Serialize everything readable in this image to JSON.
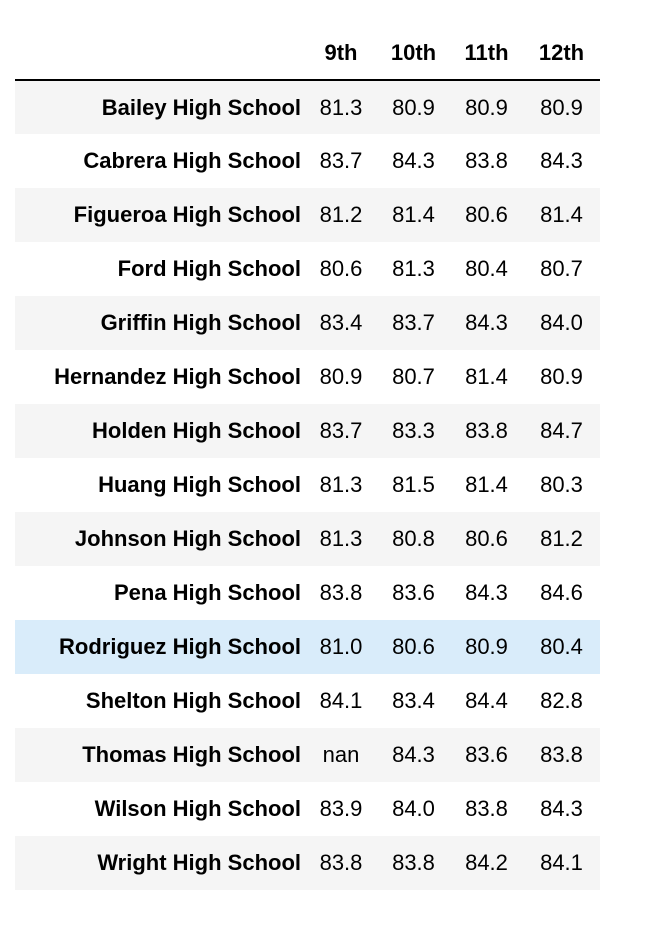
{
  "table": {
    "columns": [
      "9th",
      "10th",
      "11th",
      "12th"
    ],
    "rows": [
      {
        "school": "Bailey High School",
        "values": [
          "81.3",
          "80.9",
          "80.9",
          "80.9"
        ]
      },
      {
        "school": "Cabrera High School",
        "values": [
          "83.7",
          "84.3",
          "83.8",
          "84.3"
        ]
      },
      {
        "school": "Figueroa High School",
        "values": [
          "81.2",
          "81.4",
          "80.6",
          "81.4"
        ]
      },
      {
        "school": "Ford High School",
        "values": [
          "80.6",
          "81.3",
          "80.4",
          "80.7"
        ]
      },
      {
        "school": "Griffin High School",
        "values": [
          "83.4",
          "83.7",
          "84.3",
          "84.0"
        ]
      },
      {
        "school": "Hernandez High School",
        "values": [
          "80.9",
          "80.7",
          "81.4",
          "80.9"
        ]
      },
      {
        "school": "Holden High School",
        "values": [
          "83.7",
          "83.3",
          "83.8",
          "84.7"
        ]
      },
      {
        "school": "Huang High School",
        "values": [
          "81.3",
          "81.5",
          "81.4",
          "80.3"
        ]
      },
      {
        "school": "Johnson High School",
        "values": [
          "81.3",
          "80.8",
          "80.6",
          "81.2"
        ]
      },
      {
        "school": "Pena High School",
        "values": [
          "83.8",
          "83.6",
          "84.3",
          "84.6"
        ]
      },
      {
        "school": "Rodriguez High School",
        "values": [
          "81.0",
          "80.6",
          "80.9",
          "80.4"
        ],
        "highlighted": true
      },
      {
        "school": "Shelton High School",
        "values": [
          "84.1",
          "83.4",
          "84.4",
          "82.8"
        ]
      },
      {
        "school": "Thomas High School",
        "values": [
          "nan",
          "84.3",
          "83.6",
          "83.8"
        ]
      },
      {
        "school": "Wilson High School",
        "values": [
          "83.9",
          "84.0",
          "83.8",
          "84.3"
        ]
      },
      {
        "school": "Wright High School",
        "values": [
          "83.8",
          "83.8",
          "84.2",
          "84.1"
        ]
      }
    ]
  },
  "colors": {
    "stripe": "#f5f5f5",
    "highlight": "#d9ecfa",
    "rule": "#000000"
  }
}
